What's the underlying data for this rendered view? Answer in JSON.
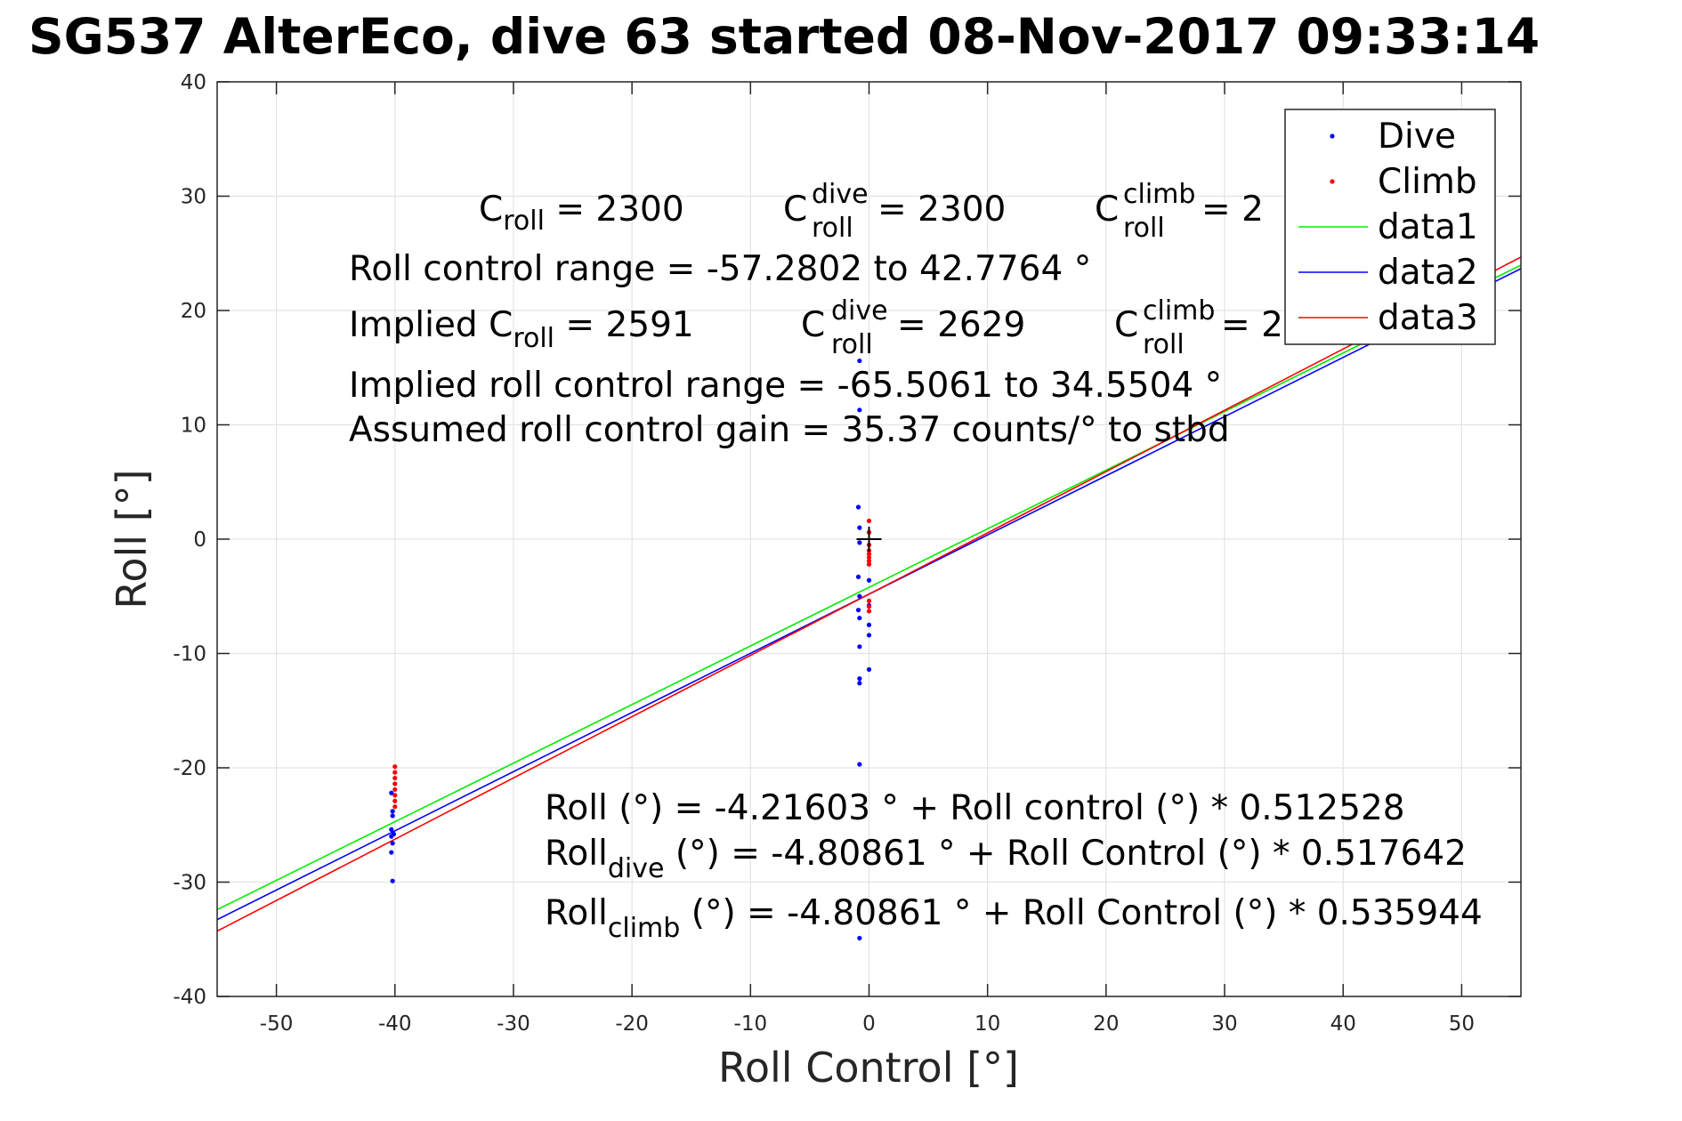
{
  "title": "SG537 AlterEco, dive 63 started 08-Nov-2017 09:33:14",
  "chart_data": {
    "type": "scatter",
    "xlabel": "Roll Control [°]",
    "ylabel": "Roll [°]",
    "xlim": [
      -55,
      55
    ],
    "ylim": [
      -40,
      40
    ],
    "xticks": [
      "-50",
      "-40",
      "-30",
      "-20",
      "-10",
      "0",
      "10",
      "20",
      "30",
      "40",
      "50"
    ],
    "yticks": [
      "40",
      "30",
      "20",
      "10",
      "0",
      "-10",
      "-20",
      "-30",
      "-40"
    ],
    "grid": true,
    "legend_position": "top-right",
    "legend": [
      "Dive",
      "Climb",
      "data1",
      "data2",
      "data3"
    ],
    "series": [
      {
        "name": "Dive",
        "kind": "points",
        "color": "#0000ff",
        "points": [
          [
            -40.3,
            -22.2
          ],
          [
            -40.2,
            -23.8
          ],
          [
            -40.2,
            -24.2
          ],
          [
            -40.3,
            -25.4
          ],
          [
            -40.1,
            -25.8
          ],
          [
            -40.3,
            -26.0
          ],
          [
            -40.2,
            -26.6
          ],
          [
            -40.3,
            -27.4
          ],
          [
            -40.2,
            -29.9
          ],
          [
            -0.8,
            15.6
          ],
          [
            -0.8,
            11.3
          ],
          [
            -0.9,
            2.8
          ],
          [
            -0.8,
            1.0
          ],
          [
            -0.8,
            -0.3
          ],
          [
            -0.9,
            -3.3
          ],
          [
            -0.8,
            -5.0
          ],
          [
            -0.9,
            -6.2
          ],
          [
            -0.8,
            -6.9
          ],
          [
            -0.8,
            -9.4
          ],
          [
            -0.8,
            -12.2
          ],
          [
            -0.8,
            -12.6
          ],
          [
            -0.8,
            -19.7
          ],
          [
            -0.8,
            -34.9
          ],
          [
            0.0,
            -3.6
          ],
          [
            0.0,
            -5.8
          ],
          [
            0.0,
            -7.5
          ],
          [
            0.0,
            -8.4
          ],
          [
            0.0,
            -11.4
          ]
        ]
      },
      {
        "name": "Climb",
        "kind": "points",
        "color": "#ff0000",
        "points": [
          [
            -40.0,
            -19.9
          ],
          [
            -40.0,
            -20.4
          ],
          [
            -40.0,
            -20.9
          ],
          [
            -40.0,
            -21.4
          ],
          [
            -40.0,
            -21.9
          ],
          [
            -40.0,
            -22.4
          ],
          [
            -40.0,
            -22.9
          ],
          [
            -40.0,
            -23.4
          ],
          [
            0.0,
            1.6
          ],
          [
            0.0,
            0.6
          ],
          [
            0.0,
            -0.5
          ],
          [
            0.0,
            -1.0
          ],
          [
            0.0,
            -1.3
          ],
          [
            0.0,
            -1.6
          ],
          [
            0.0,
            -1.9
          ],
          [
            0.0,
            -2.2
          ],
          [
            0.0,
            -5.4
          ],
          [
            0.0,
            -5.9
          ],
          [
            0.0,
            -6.3
          ]
        ]
      },
      {
        "name": "data1",
        "kind": "line",
        "color": "#00ee00",
        "intercept": -4.21603,
        "slope": 0.512528
      },
      {
        "name": "data2",
        "kind": "line",
        "color": "#0000ff",
        "intercept": -4.80861,
        "slope": 0.517642
      },
      {
        "name": "data3",
        "kind": "line",
        "color": "#ff0000",
        "intercept": -4.80861,
        "slope": 0.535944
      }
    ],
    "marker": {
      "symbol": "+",
      "x": 0,
      "y": 0,
      "color": "#000000"
    },
    "annotations": {
      "line1": [
        {
          "base": "C",
          "sub": "roll",
          "sup": "",
          "text": " = 2300"
        },
        {
          "base": "C",
          "sub": "roll",
          "sup": "dive",
          "text": " = 2300"
        },
        {
          "base": "C",
          "sub": "roll",
          "sup": "climb",
          "text": " = 2"
        }
      ],
      "line2": "Roll control range = -57.2802 to 42.7764 °",
      "line3": [
        {
          "base": "Implied C",
          "sub": "roll",
          "sup": "",
          "text": " = 2591"
        },
        {
          "base": "C",
          "sub": "roll",
          "sup": "dive",
          "text": " = 2629"
        },
        {
          "base": "C",
          "sub": "roll",
          "sup": "climb",
          "text": " = 2"
        }
      ],
      "line4": "Implied roll control range = -65.5061 to 34.5504 °",
      "line5": "Assumed roll control gain = 35.37 counts/° to stbd",
      "fit1": "Roll (°) = -4.21603 ° + Roll control (°) * 0.512528",
      "fit2": {
        "base": "Roll",
        "sub": "dive",
        "text": " (°) = -4.80861 ° + Roll Control (°) * 0.517642"
      },
      "fit3": {
        "base": "Roll",
        "sub": "climb",
        "text": " (°) = -4.80861 ° + Roll Control (°) * 0.535944"
      }
    }
  }
}
